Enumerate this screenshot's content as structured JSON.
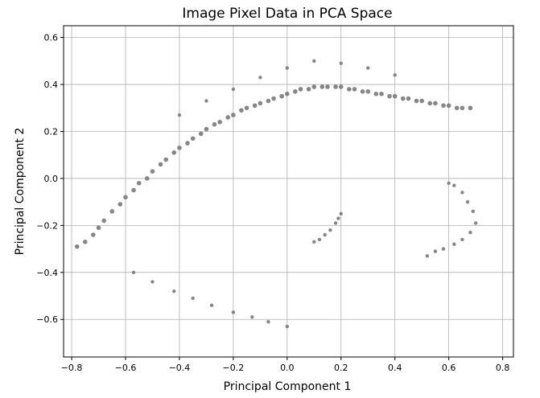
{
  "chart_data": {
    "type": "scatter",
    "title": "Image Pixel Data in PCA Space",
    "xlabel": "Principal Component 1",
    "ylabel": "Principal Component 2",
    "xlim": [
      -0.83,
      0.84
    ],
    "ylim": [
      -0.76,
      0.65
    ],
    "xticks": [
      -0.8,
      -0.6,
      -0.4,
      -0.2,
      0.0,
      0.2,
      0.4,
      0.6,
      0.8
    ],
    "yticks": [
      -0.6,
      -0.4,
      -0.2,
      0.0,
      0.2,
      0.4,
      0.6
    ],
    "xtick_labels": [
      "−0.8",
      "−0.6",
      "−0.4",
      "−0.2",
      "0.0",
      "0.2",
      "0.4",
      "0.6",
      "0.8"
    ],
    "ytick_labels": [
      "−0.6",
      "−0.4",
      "−0.2",
      "0.0",
      "0.2",
      "0.4",
      "0.6"
    ],
    "grid": true,
    "legend": "none",
    "marker_color": "#808080",
    "series": [
      {
        "description": "dense main band",
        "x": [
          -0.78,
          -0.75,
          -0.72,
          -0.7,
          -0.68,
          -0.65,
          -0.62,
          -0.6,
          -0.57,
          -0.55,
          -0.52,
          -0.5,
          -0.47,
          -0.45,
          -0.42,
          -0.4,
          -0.37,
          -0.35,
          -0.32,
          -0.3,
          -0.27,
          -0.25,
          -0.22,
          -0.2,
          -0.17,
          -0.15,
          -0.12,
          -0.1,
          -0.07,
          -0.05,
          -0.02,
          0.0,
          0.03,
          0.05,
          0.08,
          0.1,
          0.13,
          0.15,
          0.18,
          0.2,
          0.23,
          0.25,
          0.28,
          0.3,
          0.33,
          0.35,
          0.38,
          0.4,
          0.43,
          0.45,
          0.48,
          0.5,
          0.53,
          0.55,
          0.58,
          0.6,
          0.63,
          0.65,
          0.68
        ],
        "y": [
          -0.29,
          -0.27,
          -0.24,
          -0.21,
          -0.18,
          -0.14,
          -0.11,
          -0.08,
          -0.05,
          -0.02,
          0.0,
          0.03,
          0.06,
          0.08,
          0.11,
          0.13,
          0.15,
          0.17,
          0.19,
          0.21,
          0.23,
          0.24,
          0.26,
          0.27,
          0.29,
          0.3,
          0.31,
          0.32,
          0.33,
          0.34,
          0.35,
          0.36,
          0.37,
          0.38,
          0.38,
          0.39,
          0.39,
          0.39,
          0.39,
          0.39,
          0.38,
          0.38,
          0.37,
          0.37,
          0.36,
          0.36,
          0.35,
          0.35,
          0.34,
          0.34,
          0.33,
          0.33,
          0.32,
          0.32,
          0.31,
          0.31,
          0.3,
          0.3,
          0.3
        ]
      },
      {
        "description": "upper-right cap",
        "x": [
          -0.4,
          -0.3,
          -0.2,
          -0.1,
          0.0,
          0.1,
          0.2,
          0.3,
          0.4
        ],
        "y": [
          0.27,
          0.33,
          0.38,
          0.43,
          0.47,
          0.5,
          0.49,
          0.47,
          0.44
        ]
      },
      {
        "description": "right-side cluster",
        "x": [
          0.6,
          0.62,
          0.65,
          0.67,
          0.69,
          0.7,
          0.68,
          0.65,
          0.62,
          0.58,
          0.55,
          0.52
        ],
        "y": [
          -0.02,
          -0.03,
          -0.06,
          -0.1,
          -0.14,
          -0.19,
          -0.23,
          -0.26,
          -0.28,
          -0.3,
          -0.31,
          -0.33
        ]
      },
      {
        "description": "lower diagonal strand",
        "x": [
          -0.57,
          -0.5,
          -0.42,
          -0.35,
          -0.28,
          -0.2,
          -0.13,
          -0.07,
          0.0
        ],
        "y": [
          -0.4,
          -0.44,
          -0.48,
          -0.51,
          -0.54,
          -0.57,
          -0.59,
          -0.61,
          -0.63
        ]
      },
      {
        "description": "central small cluster",
        "x": [
          0.1,
          0.12,
          0.14,
          0.16,
          0.18,
          0.19,
          0.2
        ],
        "y": [
          -0.27,
          -0.26,
          -0.24,
          -0.22,
          -0.19,
          -0.17,
          -0.15
        ]
      }
    ]
  }
}
